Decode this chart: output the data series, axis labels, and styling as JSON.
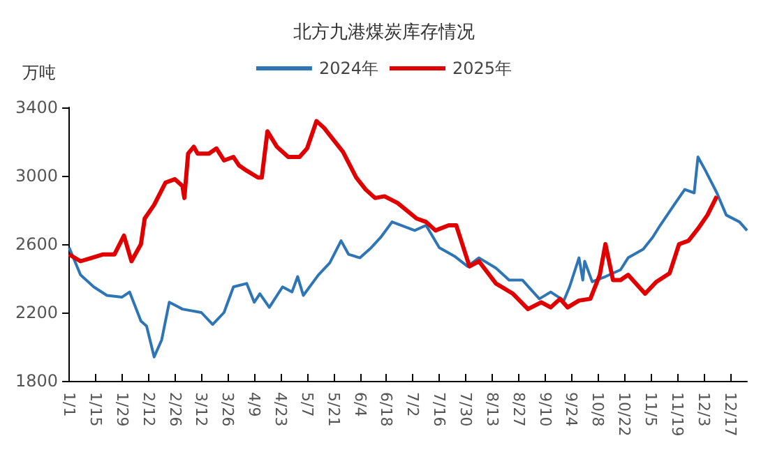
{
  "chart_data": {
    "type": "line",
    "title": "北方九港煤炭库存情况",
    "ylabel": "万吨",
    "xlim": [
      "--01-01",
      "--12-26"
    ],
    "xticks": [
      {
        "value": "--01-01",
        "label": "1/1"
      },
      {
        "value": "--01-15",
        "label": "1/15"
      },
      {
        "value": "--01-29",
        "label": "1/29"
      },
      {
        "value": "--02-12",
        "label": "2/12"
      },
      {
        "value": "--02-26",
        "label": "2/26"
      },
      {
        "value": "--03-12",
        "label": "3/12"
      },
      {
        "value": "--03-26",
        "label": "3/26"
      },
      {
        "value": "--04-09",
        "label": "4/9"
      },
      {
        "value": "--04-23",
        "label": "4/23"
      },
      {
        "value": "--05-07",
        "label": "5/7"
      },
      {
        "value": "--05-21",
        "label": "5/21"
      },
      {
        "value": "--06-04",
        "label": "6/4"
      },
      {
        "value": "--06-18",
        "label": "6/18"
      },
      {
        "value": "--07-02",
        "label": "7/2"
      },
      {
        "value": "--07-16",
        "label": "7/16"
      },
      {
        "value": "--07-30",
        "label": "7/30"
      },
      {
        "value": "--08-13",
        "label": "8/13"
      },
      {
        "value": "--08-27",
        "label": "8/27"
      },
      {
        "value": "--09-10",
        "label": "9/10"
      },
      {
        "value": "--09-24",
        "label": "9/24"
      },
      {
        "value": "--10-08",
        "label": "10/8"
      },
      {
        "value": "--10-22",
        "label": "10/22"
      },
      {
        "value": "--11-05",
        "label": "11/5"
      },
      {
        "value": "--11-19",
        "label": "11/19"
      },
      {
        "value": "--12-03",
        "label": "12/3"
      },
      {
        "value": "--12-17",
        "label": "12/17"
      }
    ],
    "ylim": [
      1800,
      3400
    ],
    "yticks": [
      1800,
      2200,
      2600,
      3000,
      3400
    ],
    "grid": false,
    "legend": "top",
    "marker": "none",
    "line_style": "solid",
    "series": [
      {
        "name": "2024年",
        "color": "#2e75b6",
        "x": [
          "--01-01",
          "--01-07",
          "--01-14",
          "--01-21",
          "--01-29",
          "--02-02",
          "--02-08",
          "--02-11",
          "--02-15",
          "--02-19",
          "--02-23",
          "--03-02",
          "--03-12",
          "--03-18",
          "--03-24",
          "--03-29",
          "--04-05",
          "--04-09",
          "--04-12",
          "--04-17",
          "--04-24",
          "--04-29",
          "--05-02",
          "--05-05",
          "--05-13",
          "--05-19",
          "--05-25",
          "--05-29",
          "--06-04",
          "--06-10",
          "--06-15",
          "--06-21",
          "--07-03",
          "--07-09",
          "--07-16",
          "--07-24",
          "--07-31",
          "--08-06",
          "--08-15",
          "--08-22",
          "--08-29",
          "--09-07",
          "--09-13",
          "--09-20",
          "--09-23",
          "--09-28",
          "--09-30",
          "--10-01",
          "--10-05",
          "--10-12",
          "--10-20",
          "--10-24",
          "--11-01",
          "--11-06",
          "--11-10",
          "--11-18",
          "--11-23",
          "--11-28",
          "--11-30",
          "--12-04",
          "--12-10",
          "--12-15",
          "--12-22",
          "--12-26"
        ],
        "values": [
          2580,
          2420,
          2350,
          2300,
          2290,
          2320,
          2150,
          2120,
          1940,
          2040,
          2260,
          2220,
          2200,
          2130,
          2200,
          2350,
          2370,
          2260,
          2310,
          2230,
          2350,
          2320,
          2410,
          2300,
          2420,
          2490,
          2620,
          2540,
          2520,
          2580,
          2640,
          2730,
          2680,
          2710,
          2580,
          2530,
          2470,
          2520,
          2460,
          2390,
          2390,
          2280,
          2320,
          2270,
          2350,
          2520,
          2390,
          2500,
          2380,
          2410,
          2450,
          2520,
          2570,
          2640,
          2710,
          2840,
          2920,
          2900,
          3110,
          3030,
          2900,
          2770,
          2730,
          2680
        ]
      },
      {
        "name": "2025年",
        "color": "#e00000",
        "x": [
          "--01-01",
          "--01-07",
          "--01-13",
          "--01-19",
          "--01-25",
          "--01-30",
          "--02-03",
          "--02-08",
          "--02-10",
          "--02-15",
          "--02-21",
          "--02-26",
          "--03-02",
          "--03-03",
          "--03-05",
          "--03-08",
          "--03-10",
          "--03-16",
          "--03-20",
          "--03-24",
          "--03-29",
          "--04-01",
          "--04-05",
          "--04-11",
          "--04-13",
          "--04-16",
          "--04-21",
          "--04-27",
          "--05-03",
          "--05-07",
          "--05-12",
          "--05-16",
          "--05-21",
          "--05-26",
          "--06-02",
          "--06-07",
          "--06-12",
          "--06-17",
          "--06-24",
          "--07-04",
          "--07-09",
          "--07-14",
          "--07-21",
          "--07-25",
          "--08-01",
          "--08-06",
          "--08-15",
          "--08-24",
          "--09-01",
          "--09-08",
          "--09-13",
          "--09-18",
          "--09-22",
          "--09-28",
          "--10-04",
          "--10-09",
          "--10-12",
          "--10-16",
          "--10-20",
          "--10-24",
          "--11-02",
          "--11-08",
          "--11-15",
          "--11-20",
          "--11-25",
          "--11-30",
          "--12-05",
          "--12-10"
        ],
        "values": [
          2540,
          2500,
          2520,
          2540,
          2540,
          2650,
          2500,
          2600,
          2750,
          2830,
          2960,
          2980,
          2940,
          2870,
          3130,
          3170,
          3130,
          3130,
          3160,
          3090,
          3110,
          3060,
          3030,
          2990,
          2990,
          3260,
          3170,
          3110,
          3110,
          3160,
          3320,
          3280,
          3210,
          3140,
          2990,
          2920,
          2870,
          2880,
          2840,
          2750,
          2730,
          2680,
          2710,
          2710,
          2470,
          2500,
          2370,
          2310,
          2220,
          2260,
          2230,
          2280,
          2230,
          2270,
          2280,
          2420,
          2600,
          2390,
          2390,
          2420,
          2310,
          2380,
          2430,
          2600,
          2620,
          2690,
          2770,
          2880
        ]
      }
    ]
  }
}
